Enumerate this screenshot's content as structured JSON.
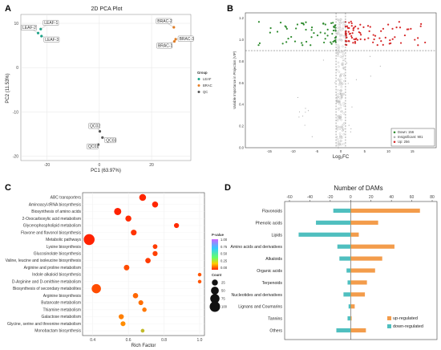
{
  "panels": {
    "a": "A",
    "b": "B",
    "c": "C",
    "d": "D"
  },
  "chart_data": [
    {
      "type": "scatter",
      "title": "2D PCA Plot",
      "xlabel": "PC1 (63.97%)",
      "ylabel": "PC2 (11.53%)",
      "xlim": [
        -30,
        35
      ],
      "ylim": [
        -21,
        12
      ],
      "xticks": [
        "-20",
        "0",
        "20",
        "40"
      ],
      "yticks": [
        "10",
        "0",
        "-10",
        "-20"
      ],
      "grid": true,
      "legend": {
        "title": "Group",
        "placement": "right"
      },
      "series": [
        {
          "name": "LEAF",
          "color": "#17a589",
          "points": [
            {
              "x": -22.4,
              "y": 8.7,
              "label": "LEAF-1"
            },
            {
              "x": -23.4,
              "y": 7.8,
              "label": "LEAF-2"
            },
            {
              "x": -22.1,
              "y": 7.1,
              "label": "LEAF-3"
            }
          ]
        },
        {
          "name": "BRAC",
          "color": "#e67e22",
          "points": [
            {
              "x": 28.5,
              "y": 9.1,
              "label": "BRAC-2"
            },
            {
              "x": 29.2,
              "y": 6.4,
              "label": "BRAC-3"
            },
            {
              "x": 28.7,
              "y": 5.9,
              "label": "BRAC-1"
            }
          ]
        },
        {
          "name": "QC",
          "color": "#555555",
          "points": [
            {
              "x": 0.2,
              "y": -14.4,
              "label": "QC02"
            },
            {
              "x": 1.2,
              "y": -15.8,
              "label": "QC03"
            },
            {
              "x": -0.4,
              "y": -17.4,
              "label": "QC01"
            }
          ]
        }
      ]
    },
    {
      "type": "scatter",
      "title": "",
      "xlabel": "Log₂FC",
      "ylabel": "Variable Importance in Projection (VIP)",
      "xlim": [
        -20,
        20
      ],
      "ylim": [
        0,
        1.25
      ],
      "xticks": [
        "-15",
        "-10",
        "-5",
        "0",
        "5",
        "10",
        "15"
      ],
      "yticks": [
        "1.2",
        "1.0",
        "0.8",
        "0.6",
        "0.4",
        "0.2",
        "0.0"
      ],
      "thresholds": {
        "x": [
          -1,
          1
        ],
        "y": 0.9
      },
      "grid": false,
      "legend": {
        "placement": "bottom-right",
        "entries": [
          {
            "label": "Down: 156",
            "color": "#2e8b2e"
          },
          {
            "label": "Insignificant: 901",
            "color": "#b0b0b0"
          },
          {
            "label": "Up: 256",
            "color": "#d62728"
          }
        ]
      }
    },
    {
      "type": "scatter",
      "title": "",
      "xlabel": "Rich Factor",
      "ylabel": "",
      "xlim": [
        0.37,
        1.0
      ],
      "xticks": [
        "0.4",
        "0.6",
        "0.8",
        "1.0"
      ],
      "color_legend": {
        "title": "P-value",
        "ticks": [
          "1.00",
          "0.75",
          "0.50",
          "0.25",
          "0.00"
        ]
      },
      "size_legend": {
        "title": "Count",
        "entries": [
          25,
          50,
          75,
          100
        ]
      },
      "categories": [
        "ABC transporters",
        "Aminoacyl-tRNA biosynthesis",
        "Biosynthesis of amino acids",
        "2-Oxocarboxylic acid metabolism",
        "Glycerophospholipid metabolism",
        "Flavone and flavonol biosynthesis",
        "Metabolic pathways",
        "Lysine biosynthesis",
        "Glucosinolate biosynthesis",
        "Valine, leucine and isoleucine biosynthesis",
        "Arginine and proline metabolism",
        "Indole alkaloid biosynthesis",
        "D-Arginine and D-ornithine metabolism",
        "Biosynthesis of secondary metabolites",
        "Arginine biosynthesis",
        "Butanoate metabolism",
        "Thiamine metabolism",
        "Galactose metabolism",
        "Glycine, serine and threonine metabolism",
        "Monobactam biosynthesis"
      ],
      "points": [
        {
          "x": 0.68,
          "count": 35,
          "p": 0.01
        },
        {
          "x": 0.75,
          "count": 25,
          "p": 0.01
        },
        {
          "x": 0.54,
          "count": 40,
          "p": 0.0
        },
        {
          "x": 0.6,
          "count": 25,
          "p": 0.02
        },
        {
          "x": 0.87,
          "count": 15,
          "p": 0.02
        },
        {
          "x": 0.63,
          "count": 22,
          "p": 0.04
        },
        {
          "x": 0.38,
          "count": 110,
          "p": 0.0
        },
        {
          "x": 0.75,
          "count": 12,
          "p": 0.06
        },
        {
          "x": 0.75,
          "count": 15,
          "p": 0.07
        },
        {
          "x": 0.71,
          "count": 18,
          "p": 0.06
        },
        {
          "x": 0.59,
          "count": 20,
          "p": 0.1
        },
        {
          "x": 1.0,
          "count": 5,
          "p": 0.12
        },
        {
          "x": 1.0,
          "count": 5,
          "p": 0.12
        },
        {
          "x": 0.42,
          "count": 75,
          "p": 0.1
        },
        {
          "x": 0.64,
          "count": 18,
          "p": 0.16
        },
        {
          "x": 0.67,
          "count": 14,
          "p": 0.18
        },
        {
          "x": 0.69,
          "count": 10,
          "p": 0.2
        },
        {
          "x": 0.56,
          "count": 16,
          "p": 0.22
        },
        {
          "x": 0.57,
          "count": 14,
          "p": 0.25
        },
        {
          "x": 0.68,
          "count": 6,
          "p": 0.35
        }
      ]
    },
    {
      "type": "bar",
      "title": "Number of DAMs",
      "xlabel": "",
      "ylabel": "",
      "xlim": [
        -60,
        80
      ],
      "xticks": [
        "-60",
        "-40",
        "-20",
        "0",
        "20",
        "40",
        "60",
        "80"
      ],
      "categories": [
        "Flavonoids",
        "Phenolic acids",
        "Lipids",
        "Amino acids and derivatives",
        "Alkaloids",
        "Organic acids",
        "Terpenoids",
        "Nucleotides and derivatives",
        "Lignans and Coumarins",
        "Tannins",
        "Others"
      ],
      "series": [
        {
          "name": "up-regulated",
          "color": "#f39c4b",
          "values": [
            68,
            27,
            8,
            43,
            31,
            24,
            16,
            14,
            4,
            1,
            15
          ]
        },
        {
          "name": "down-regulated",
          "color": "#4fbfbf",
          "values": [
            -17,
            -34,
            -51,
            -13,
            -11,
            -4,
            -3,
            -7,
            -2,
            -3,
            -14
          ]
        }
      ],
      "legend": {
        "placement": "bottom-right"
      }
    }
  ]
}
